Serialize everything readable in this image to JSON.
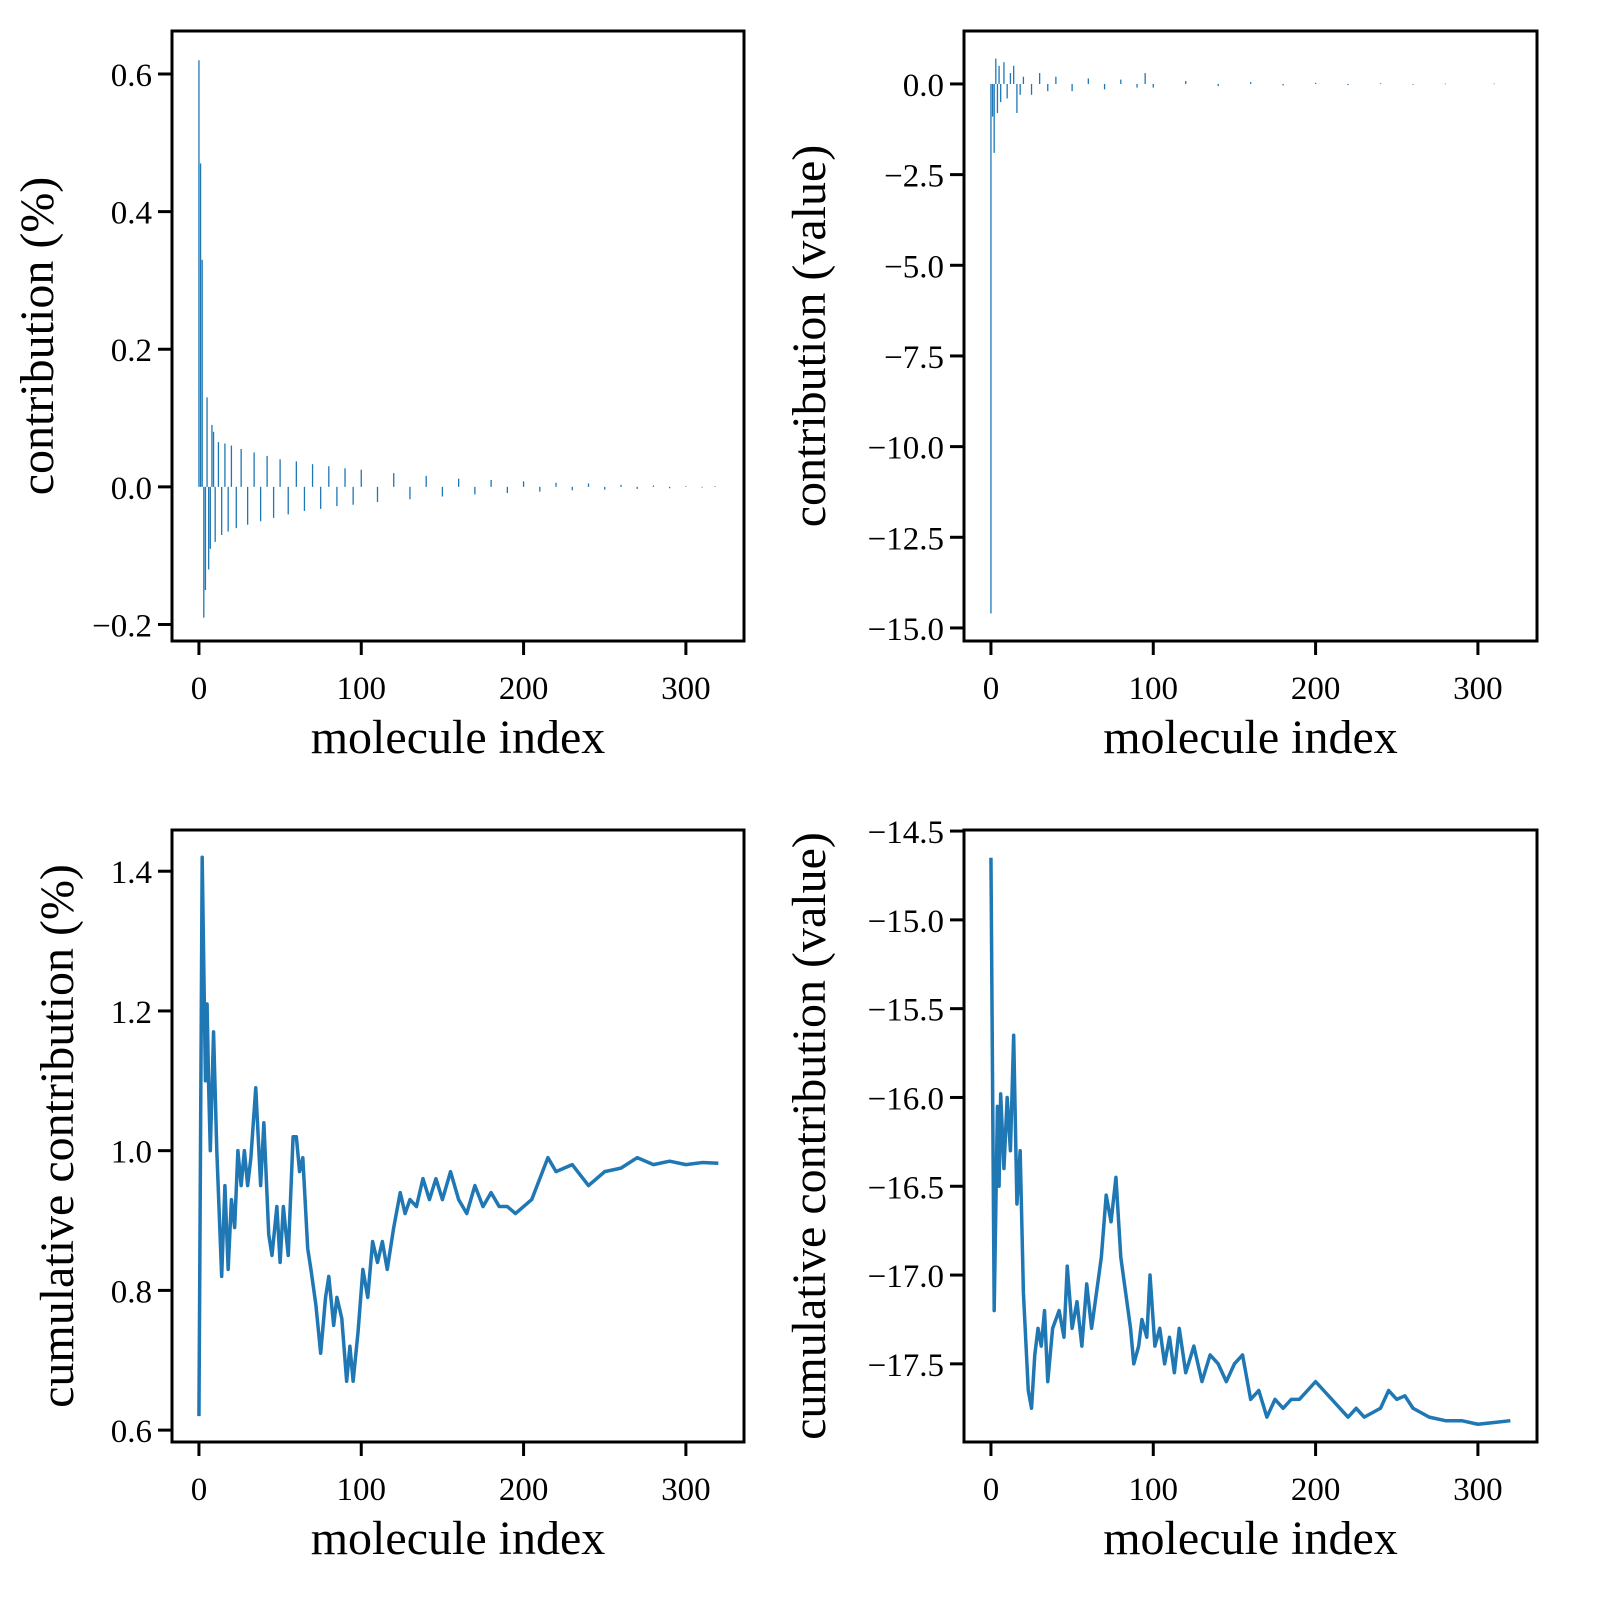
{
  "chart_data": [
    {
      "type": "bar",
      "xlabel": "molecule index",
      "ylabel": "contribution (%)",
      "color": "#1f77b4",
      "x": [
        0,
        1,
        2,
        3,
        4,
        5,
        6,
        7,
        8,
        9,
        10,
        12,
        14,
        16,
        18,
        20,
        23,
        26,
        30,
        34,
        38,
        42,
        46,
        50,
        55,
        60,
        65,
        70,
        75,
        80,
        85,
        90,
        95,
        100,
        110,
        120,
        130,
        140,
        150,
        160,
        170,
        180,
        190,
        200,
        210,
        220,
        230,
        240,
        250,
        260,
        270,
        280,
        290,
        300,
        310,
        318
      ],
      "values": [
        0.62,
        0.47,
        0.33,
        -0.19,
        -0.15,
        0.13,
        -0.12,
        -0.09,
        0.09,
        0.08,
        -0.08,
        0.065,
        -0.07,
        0.063,
        -0.065,
        0.06,
        -0.06,
        0.055,
        -0.055,
        0.05,
        -0.05,
        0.045,
        -0.045,
        0.04,
        -0.04,
        0.037,
        -0.035,
        0.033,
        -0.032,
        0.03,
        -0.028,
        0.027,
        -0.026,
        0.025,
        -0.022,
        0.02,
        -0.018,
        0.016,
        -0.014,
        0.012,
        -0.011,
        0.01,
        -0.009,
        0.008,
        -0.007,
        0.006,
        -0.005,
        0.005,
        -0.004,
        0.003,
        -0.003,
        0.002,
        -0.002,
        0.001,
        -0.001,
        0.001
      ],
      "xlim": [
        -16.6,
        335.8
      ],
      "ylim": [
        -0.224,
        0.6625
      ],
      "xticks": [
        0,
        100,
        200,
        300
      ],
      "yticks": [
        {
          "value": -0.2,
          "label": "−0.2"
        },
        {
          "value": 0,
          "label": "0.0"
        },
        0.2,
        0.4,
        0.6
      ]
    },
    {
      "type": "bar",
      "xlabel": "molecule index",
      "ylabel": "contribution (value)",
      "color": "#1f77b4",
      "x": [
        0,
        1,
        2,
        3,
        4,
        5,
        6,
        8,
        10,
        12,
        14,
        16,
        18,
        20,
        25,
        30,
        35,
        40,
        50,
        60,
        70,
        80,
        90,
        95,
        100,
        120,
        140,
        160,
        180,
        200,
        220,
        240,
        260,
        280,
        310
      ],
      "values": [
        -14.6,
        -0.9,
        -1.9,
        0.7,
        -0.8,
        0.5,
        -0.5,
        0.6,
        -0.4,
        0.3,
        0.5,
        -0.8,
        -0.3,
        0.2,
        -0.3,
        0.3,
        -0.2,
        0.2,
        -0.2,
        0.15,
        -0.15,
        0.12,
        -0.1,
        0.3,
        -0.1,
        0.08,
        -0.06,
        0.05,
        -0.04,
        0.03,
        -0.03,
        0.02,
        -0.02,
        0.01,
        0.01
      ],
      "xlim": [
        -16.6,
        336.4
      ],
      "ylim": [
        -15.36,
        1.46
      ],
      "xticks": [
        0,
        100,
        200,
        300
      ],
      "yticks": [
        {
          "value": -15,
          "label": "−15.0"
        },
        {
          "value": -12.5,
          "label": "−12.5"
        },
        {
          "value": -10,
          "label": "−10.0"
        },
        {
          "value": -7.5,
          "label": "−7.5"
        },
        {
          "value": -5,
          "label": "−5.0"
        },
        {
          "value": -2.5,
          "label": "−2.5"
        },
        {
          "value": 0,
          "label": "0.0"
        }
      ]
    },
    {
      "type": "line",
      "xlabel": "molecule index",
      "ylabel": "cumulative contribution (%)",
      "color": "#1f77b4",
      "x": [
        0,
        2,
        4,
        5,
        6,
        7,
        9,
        11,
        14,
        16,
        18,
        20,
        22,
        24,
        26,
        28,
        30,
        32,
        35,
        38,
        40,
        43,
        45,
        48,
        50,
        52,
        55,
        58,
        60,
        62,
        64,
        67,
        69,
        72,
        75,
        78,
        80,
        83,
        85,
        88,
        91,
        93,
        95,
        98,
        101,
        104,
        107,
        110,
        113,
        116,
        120,
        124,
        127,
        130,
        134,
        138,
        142,
        146,
        150,
        155,
        160,
        165,
        170,
        175,
        180,
        185,
        190,
        195,
        200,
        205,
        210,
        215,
        220,
        230,
        240,
        250,
        260,
        270,
        280,
        290,
        300,
        310,
        320
      ],
      "values": [
        0.62,
        1.42,
        1.1,
        1.21,
        1.09,
        1.0,
        1.17,
        1.0,
        0.82,
        0.95,
        0.83,
        0.93,
        0.89,
        1.0,
        0.95,
        1.0,
        0.95,
        0.99,
        1.09,
        0.95,
        1.04,
        0.88,
        0.85,
        0.92,
        0.84,
        0.92,
        0.85,
        1.02,
        1.02,
        0.97,
        0.99,
        0.86,
        0.83,
        0.78,
        0.71,
        0.79,
        0.82,
        0.75,
        0.79,
        0.76,
        0.67,
        0.72,
        0.67,
        0.74,
        0.83,
        0.79,
        0.87,
        0.84,
        0.87,
        0.83,
        0.89,
        0.94,
        0.91,
        0.93,
        0.92,
        0.96,
        0.93,
        0.96,
        0.93,
        0.97,
        0.93,
        0.91,
        0.95,
        0.92,
        0.94,
        0.92,
        0.92,
        0.91,
        0.92,
        0.93,
        0.96,
        0.99,
        0.97,
        0.98,
        0.95,
        0.97,
        0.975,
        0.99,
        0.98,
        0.985,
        0.98,
        0.983,
        0.982
      ],
      "xlim": [
        -16.6,
        335.8
      ],
      "ylim": [
        0.583,
        1.459
      ],
      "xticks": [
        0,
        100,
        200,
        300
      ],
      "yticks": [
        0.6,
        0.8,
        {
          "value": 1,
          "label": "1.0"
        },
        1.2,
        1.4
      ]
    },
    {
      "type": "line",
      "xlabel": "molecule index",
      "ylabel": "cumulative contribution (value)",
      "color": "#1f77b4",
      "x": [
        0,
        2,
        4,
        5,
        6,
        8,
        10,
        12,
        14,
        16,
        18,
        20,
        23,
        25,
        27,
        29,
        31,
        33,
        35,
        38,
        42,
        45,
        47,
        50,
        53,
        56,
        59,
        62,
        65,
        68,
        71,
        74,
        77,
        80,
        83,
        86,
        88,
        91,
        93,
        96,
        98,
        101,
        104,
        107,
        110,
        113,
        116,
        120,
        125,
        130,
        135,
        140,
        145,
        150,
        155,
        160,
        165,
        170,
        175,
        180,
        185,
        190,
        195,
        200,
        205,
        210,
        215,
        220,
        225,
        230,
        240,
        245,
        250,
        255,
        260,
        270,
        280,
        290,
        300,
        310,
        320
      ],
      "values": [
        -14.65,
        -17.2,
        -16.05,
        -16.5,
        -15.98,
        -16.4,
        -16.0,
        -16.3,
        -15.65,
        -16.6,
        -16.3,
        -17.1,
        -17.65,
        -17.75,
        -17.45,
        -17.3,
        -17.4,
        -17.2,
        -17.6,
        -17.3,
        -17.2,
        -17.35,
        -16.95,
        -17.3,
        -17.15,
        -17.4,
        -17.05,
        -17.3,
        -17.1,
        -16.9,
        -16.55,
        -16.7,
        -16.45,
        -16.9,
        -17.1,
        -17.3,
        -17.5,
        -17.4,
        -17.25,
        -17.35,
        -17.0,
        -17.4,
        -17.3,
        -17.5,
        -17.35,
        -17.55,
        -17.3,
        -17.55,
        -17.4,
        -17.6,
        -17.45,
        -17.5,
        -17.6,
        -17.5,
        -17.45,
        -17.7,
        -17.65,
        -17.8,
        -17.7,
        -17.75,
        -17.7,
        -17.7,
        -17.65,
        -17.6,
        -17.65,
        -17.7,
        -17.75,
        -17.8,
        -17.75,
        -17.8,
        -17.75,
        -17.65,
        -17.7,
        -17.68,
        -17.75,
        -17.8,
        -17.82,
        -17.82,
        -17.84,
        -17.83,
        -17.82
      ],
      "xlim": [
        -16.6,
        336.4
      ],
      "ylim": [
        -17.94,
        -14.494
      ],
      "xticks": [
        0,
        100,
        200,
        300
      ],
      "yticks": [
        {
          "value": -17.5,
          "label": "−17.5"
        },
        {
          "value": -17,
          "label": "−17.0"
        },
        {
          "value": -16.5,
          "label": "−16.5"
        },
        {
          "value": -16,
          "label": "−16.0"
        },
        {
          "value": -15.5,
          "label": "−15.5"
        },
        {
          "value": -15,
          "label": "−15.0"
        },
        {
          "value": -14.5,
          "label": "−14.5"
        }
      ]
    }
  ]
}
